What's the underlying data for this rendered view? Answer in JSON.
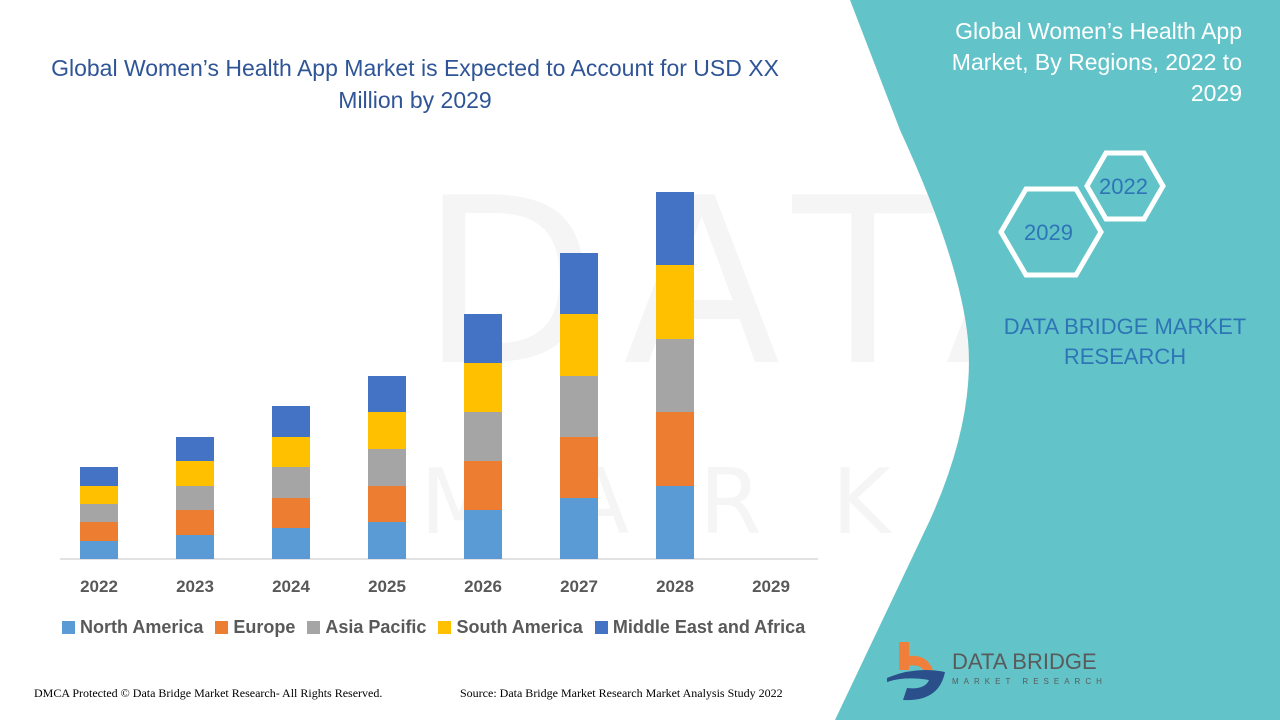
{
  "title": "Global Women’s Health App Market is Expected to Account for USD XX Million by 2029",
  "side_panel": {
    "title": "Global Women’s Health App Market, By Regions, 2022 to 2029",
    "hex_labels": [
      "2022",
      "2029"
    ],
    "brand": "DATA BRIDGE MARKET RESEARCH",
    "logo_text": "DATA BRIDGE",
    "logo_subtext": "MARKET RESEARCH",
    "color": "#62c4c9"
  },
  "footer": {
    "left": "DMCA Protected © Data Bridge Market Research- All Rights Reserved.",
    "right": "Source: Data Bridge Market Research Market Analysis Study 2022"
  },
  "chart_data": {
    "type": "bar",
    "stacked": true,
    "title": "Global Women’s Health App Market is Expected to Account for USD XX Million by 2029",
    "categories": [
      "2022",
      "2023",
      "2024",
      "2025",
      "2026",
      "2027",
      "2028",
      "2029"
    ],
    "y_axis_shown": false,
    "ylim": [
      0,
      380
    ],
    "grid": false,
    "legend_position": "bottom",
    "series": [
      {
        "name": "North America",
        "color": "#5b9bd5",
        "values": [
          18,
          24,
          31,
          37,
          49,
          61,
          73,
          null
        ]
      },
      {
        "name": "Europe",
        "color": "#ed7d31",
        "values": [
          19,
          25,
          30,
          36,
          49,
          61,
          74,
          null
        ]
      },
      {
        "name": "Asia Pacific",
        "color": "#a5a5a5",
        "values": [
          18,
          24,
          31,
          37,
          49,
          61,
          73,
          null
        ]
      },
      {
        "name": "South America",
        "color": "#ffc000",
        "values": [
          18,
          25,
          30,
          37,
          49,
          62,
          74,
          null
        ]
      },
      {
        "name": "Middle East and Africa",
        "color": "#4472c4",
        "values": [
          19,
          24,
          31,
          36,
          49,
          61,
          73,
          null
        ]
      }
    ]
  }
}
